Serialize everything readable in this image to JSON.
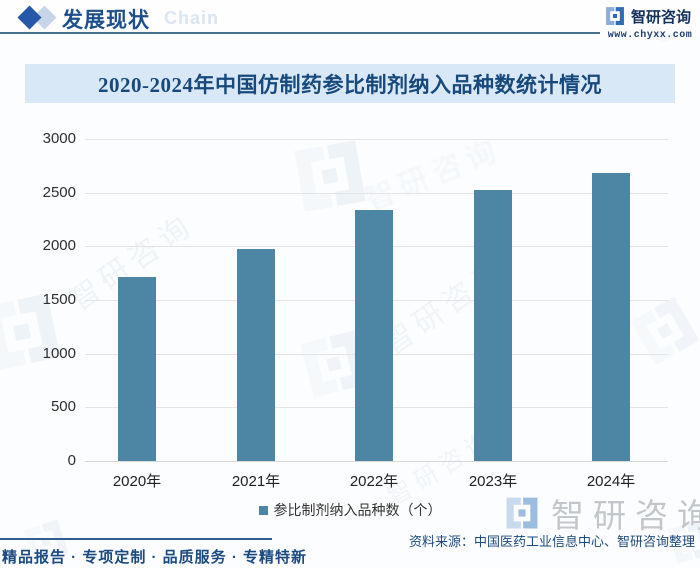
{
  "header": {
    "section_title": "发展现状",
    "section_watermark": "Chain",
    "brand_name": "智研咨询",
    "brand_url": "www.chyxx.com"
  },
  "chart": {
    "title": "2020-2024年中国仿制药参比制剂纳入品种数统计情况",
    "legend": "参比制剂纳入品种数（个）"
  },
  "chart_data": {
    "type": "bar",
    "title": "2020-2024年中国仿制药参比制剂纳入品种数统计情况",
    "categories": [
      "2020年",
      "2021年",
      "2022年",
      "2023年",
      "2024年"
    ],
    "series": [
      {
        "name": "参比制剂纳入品种数（个）",
        "values": [
          1710,
          1975,
          2335,
          2525,
          2680
        ]
      }
    ],
    "xlabel": "",
    "ylabel": "",
    "ylim": [
      0,
      3000
    ],
    "yticks": [
      0,
      500,
      1000,
      1500,
      2000,
      2500,
      3000
    ],
    "grid": true,
    "legend_position": "bottom",
    "bar_color": "#4d86a4"
  },
  "watermark": {
    "text": "智研咨询"
  },
  "footer": {
    "source": "资料来源：中国医药工业信息中心、智研咨询整理",
    "motto": "精品报告 · 专项定制 · 品质服务 · 专精特新"
  },
  "colors": {
    "bar": "#4d86a4",
    "title_band_bg": "#d9e8f6",
    "dark_blue": "#1d4a7c",
    "header_rule": "#44718e"
  }
}
